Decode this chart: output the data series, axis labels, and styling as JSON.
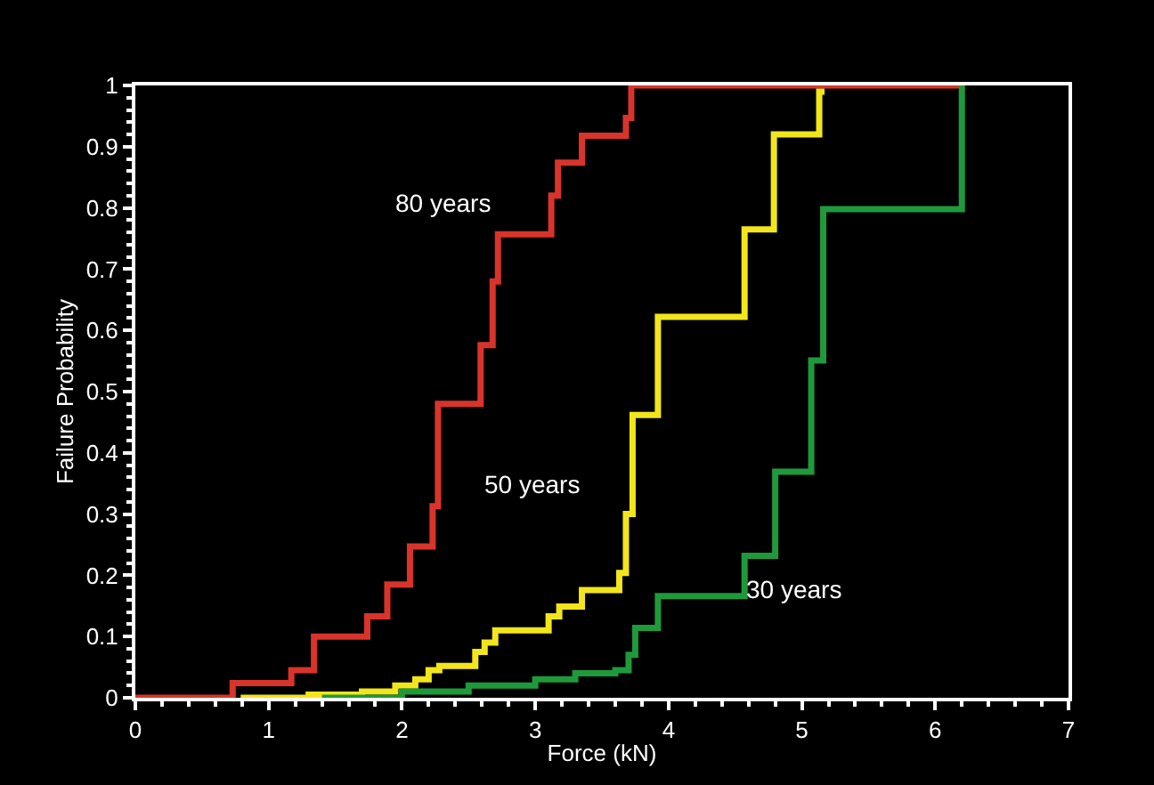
{
  "chart_data": {
    "type": "step",
    "xlabel": "Force (kN)",
    "ylabel": "Failure Probability",
    "xlim": [
      0,
      7
    ],
    "ylim": [
      0,
      1
    ],
    "xticks": [
      0,
      1,
      2,
      3,
      4,
      5,
      6,
      7
    ],
    "yticks": [
      0,
      {
        "value": 0.1,
        "label": "0.1"
      },
      {
        "value": 0.2,
        "label": "0.2"
      },
      {
        "value": 0.3,
        "label": "0.3"
      },
      {
        "value": 0.4,
        "label": "0.4"
      },
      {
        "value": 0.5,
        "label": "0.5"
      },
      {
        "value": 0.6,
        "label": "0.6"
      },
      {
        "value": 0.7,
        "label": "0.7"
      },
      {
        "value": 0.8,
        "label": "0.8"
      },
      {
        "value": 0.9,
        "label": "0.9"
      },
      1
    ],
    "grid": false,
    "legend": false,
    "marker": "none",
    "line_style": "solid",
    "series": [
      {
        "name": "80 years",
        "color": "#d9342b",
        "x": [
          0,
          0.73,
          1.17,
          1.34,
          1.74,
          1.89,
          2.06,
          2.23,
          2.27,
          2.59,
          2.68,
          2.72,
          3.12,
          3.17,
          3.35,
          3.68,
          3.72,
          6.2
        ],
        "values": [
          0,
          0.024,
          0.045,
          0.1,
          0.133,
          0.185,
          0.247,
          0.313,
          0.48,
          0.576,
          0.68,
          0.757,
          0.82,
          0.874,
          0.918,
          0.947,
          1,
          1
        ]
      },
      {
        "name": "50 years",
        "color": "#f2e51c",
        "x": [
          0.79,
          1.3,
          1.7,
          1.95,
          2.1,
          2.2,
          2.28,
          2.55,
          2.62,
          2.7,
          3.1,
          3.18,
          3.35,
          3.63,
          3.68,
          3.73,
          3.92,
          4.57,
          4.79,
          5.13,
          5.17
        ],
        "values": [
          0,
          0.005,
          0.01,
          0.02,
          0.03,
          0.045,
          0.052,
          0.075,
          0.09,
          0.11,
          0.133,
          0.149,
          0.176,
          0.204,
          0.3,
          0.462,
          0.622,
          0.765,
          0.92,
          0.99,
          0.99
        ]
      },
      {
        "name": "30 years",
        "color": "#1e9a3a",
        "x": [
          1.4,
          2.0,
          2.5,
          3.0,
          3.3,
          3.6,
          3.7,
          3.75,
          3.92,
          4.57,
          4.8,
          5.07,
          5.16,
          6.2
        ],
        "values": [
          0,
          0.01,
          0.02,
          0.03,
          0.04,
          0.045,
          0.07,
          0.114,
          0.166,
          0.232,
          0.369,
          0.551,
          0.798,
          1
        ]
      }
    ]
  }
}
